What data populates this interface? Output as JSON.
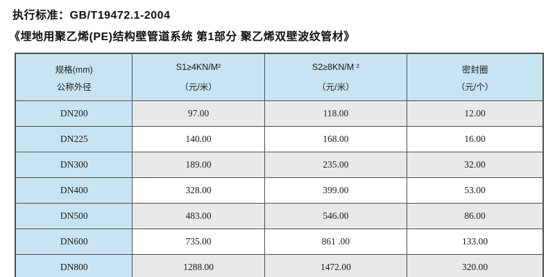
{
  "page": {
    "standard_line": "执行标准：GB/T19472.1-2004",
    "title_line": "《埋地用聚乙烯(PE)结构壁管道系统 第1部分 聚乙烯双壁波纹管材》"
  },
  "table": {
    "columns": [
      {
        "line1": "规格(mm)",
        "line2": "公称外径"
      },
      {
        "line1": "S1≥4KN/M²",
        "line2": "（元/米）"
      },
      {
        "line1": "S2≥8KN/M ²",
        "line2": "（元/米）"
      },
      {
        "line1": "密封圈",
        "line2": "（元/个）"
      }
    ],
    "rows": [
      {
        "spec": "DN200",
        "s1": "97.00",
        "s2": "118.00",
        "seal": "12.00"
      },
      {
        "spec": "DN225",
        "s1": "140.00",
        "s2": "168.00",
        "seal": "16.00"
      },
      {
        "spec": "DN300",
        "s1": "189.00",
        "s2": "235.00",
        "seal": "32.00"
      },
      {
        "spec": "DN400",
        "s1": "328.00",
        "s2": "399.00",
        "seal": "53.00"
      },
      {
        "spec": "DN500",
        "s1": "483.00",
        "s2": "546.00",
        "seal": "86.00"
      },
      {
        "spec": "DN600",
        "s1": "735.00",
        "s2": "861 .00",
        "seal": "133.00"
      },
      {
        "spec": "DN800",
        "s1": "1288.00",
        "s2": "1472.00",
        "seal": "320.00"
      }
    ],
    "colors": {
      "header_bg": "#c8e4f2",
      "row_alt_bg": "#e9e9e9",
      "row_bg": "#ffffff",
      "border": "#4c4c4c"
    }
  }
}
